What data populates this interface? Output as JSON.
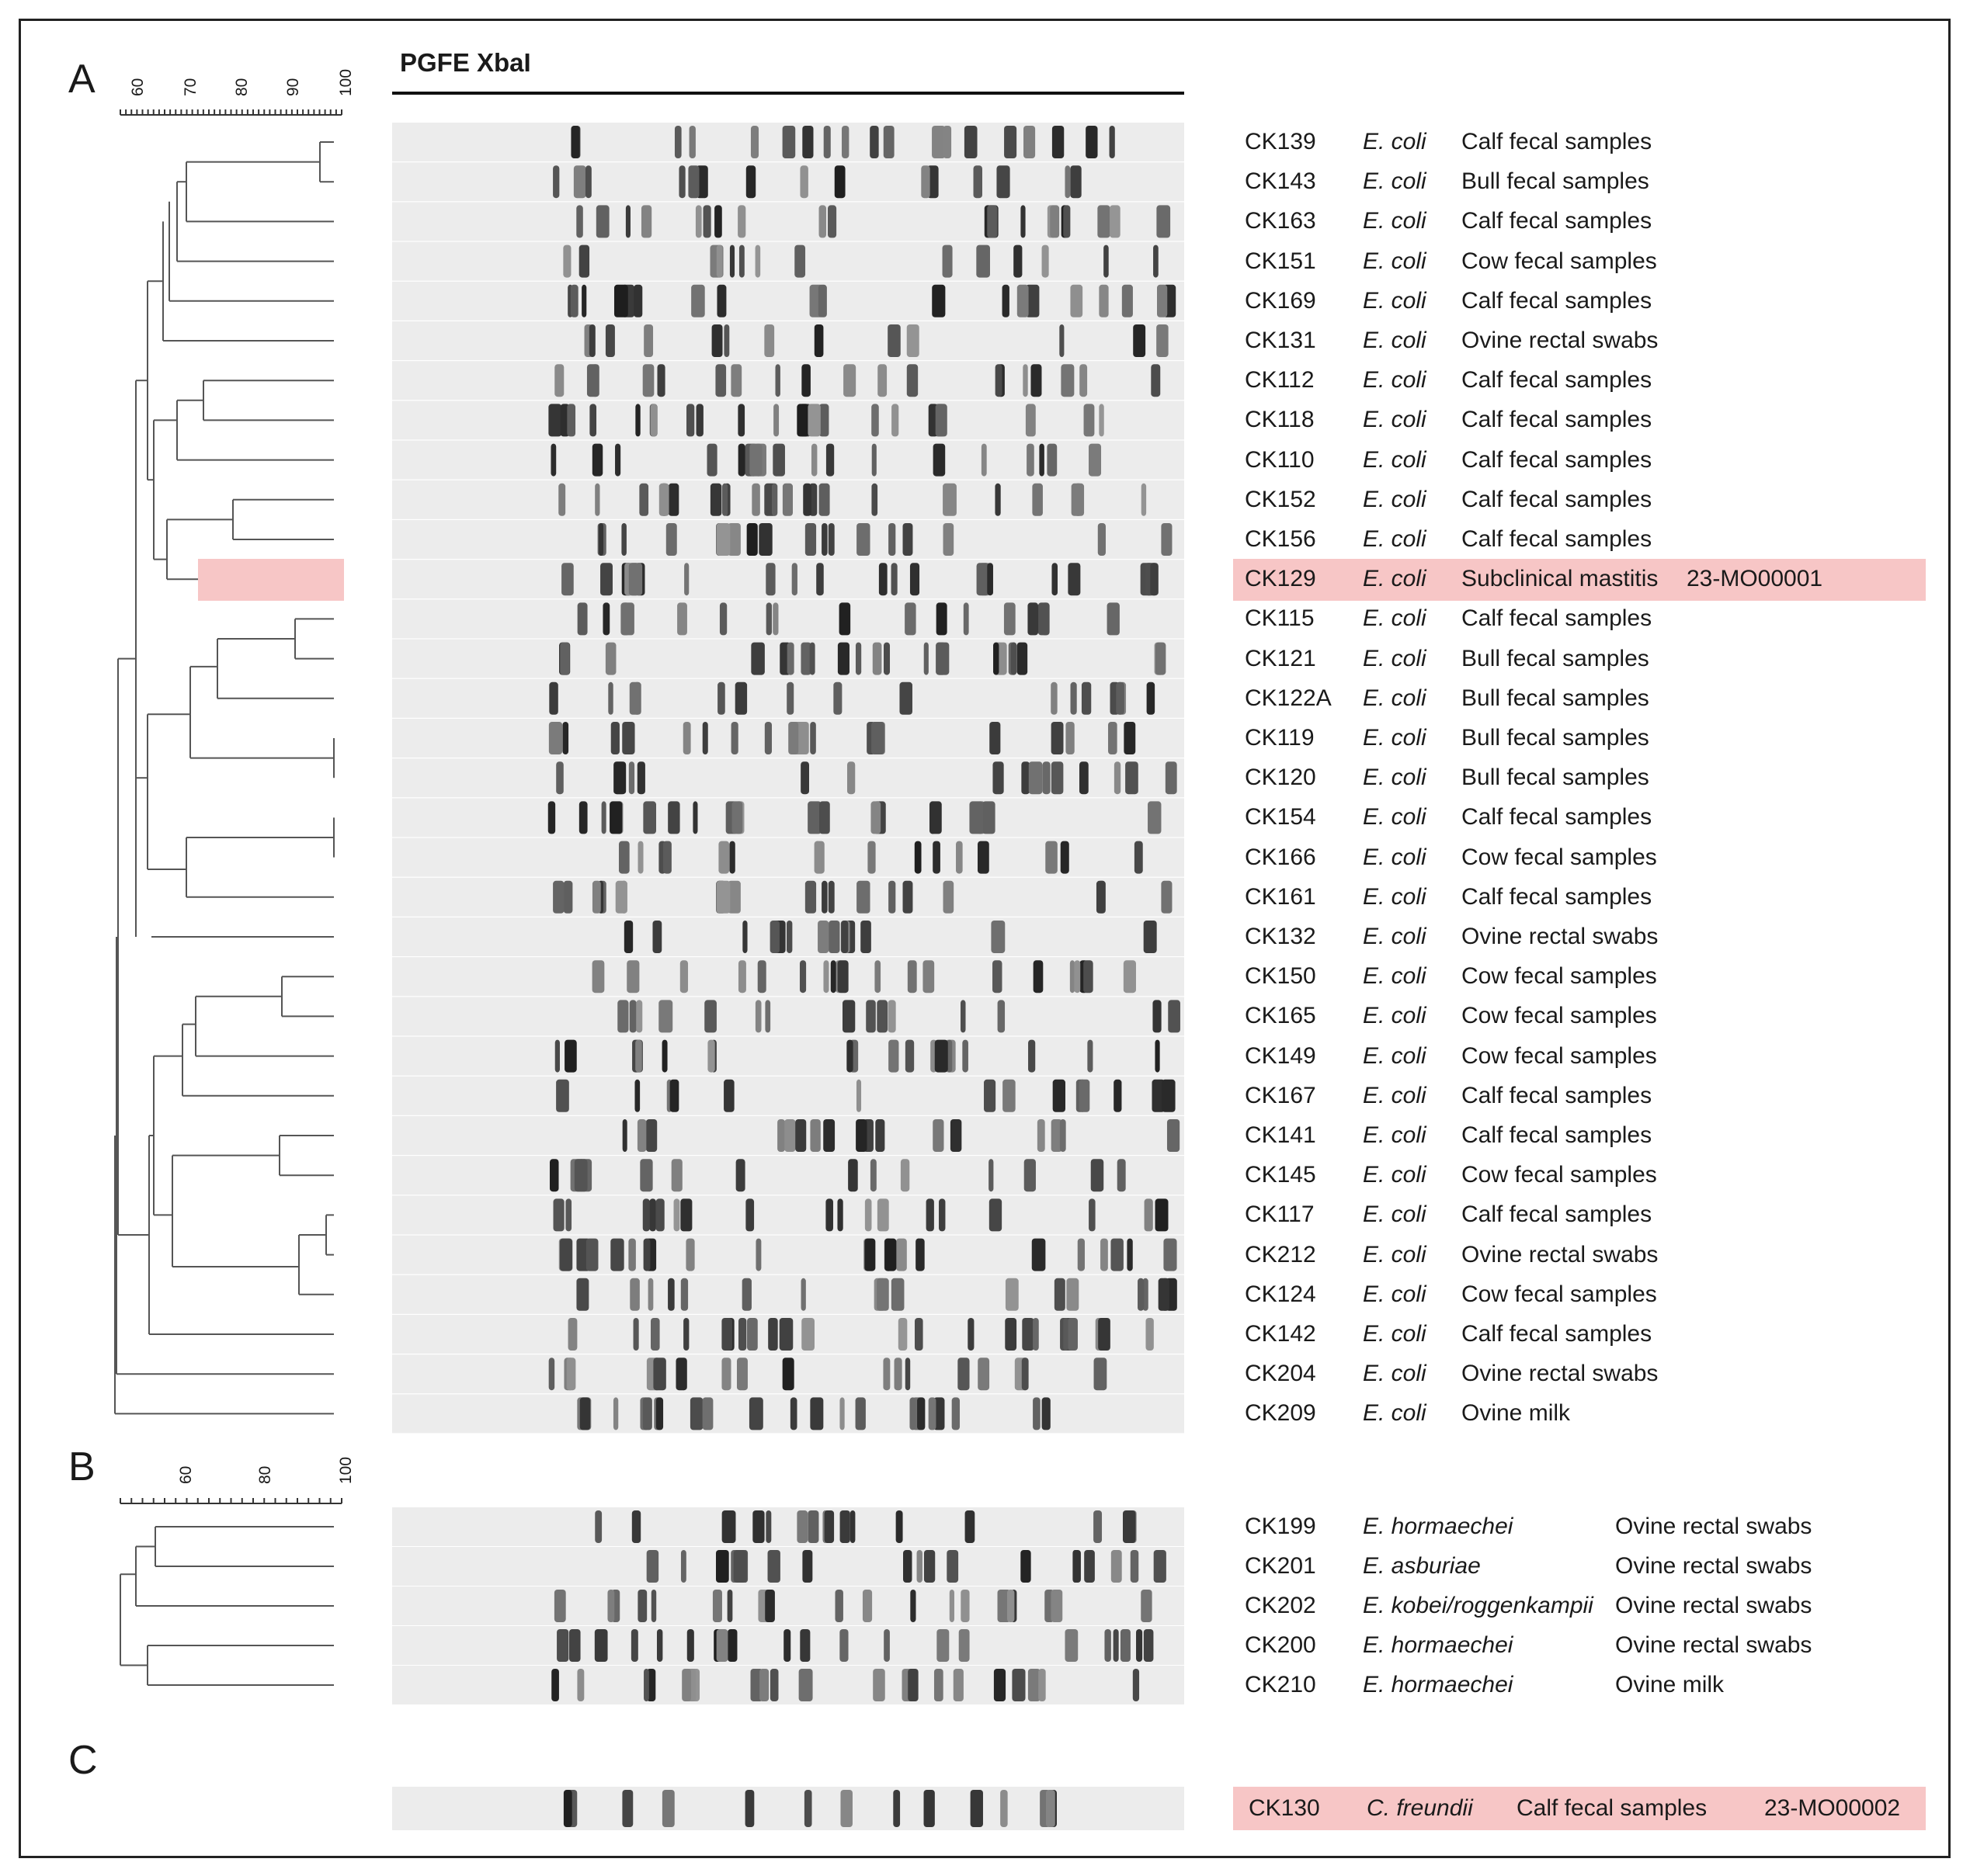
{
  "title": "PGFE XbaI",
  "panels": {
    "A": "A",
    "B": "B",
    "C": "C"
  },
  "scale_a": {
    "ticks": [
      "60",
      "70",
      "80",
      "90",
      "100"
    ]
  },
  "scale_b": {
    "ticks": [
      "60",
      "80",
      "100"
    ]
  },
  "highlight_color": "#f7c6c6",
  "highlighted_isolates": [
    "CK129",
    "CK130"
  ],
  "panel_a_rows": [
    {
      "id": "CK139",
      "species": "E. coli",
      "source": "Calf fecal samples",
      "extra": ""
    },
    {
      "id": "CK143",
      "species": "E. coli",
      "source": "Bull fecal samples",
      "extra": ""
    },
    {
      "id": "CK163",
      "species": "E. coli",
      "source": "Calf fecal samples",
      "extra": ""
    },
    {
      "id": "CK151",
      "species": "E. coli",
      "source": "Cow fecal samples",
      "extra": ""
    },
    {
      "id": "CK169",
      "species": "E. coli",
      "source": "Calf fecal samples",
      "extra": ""
    },
    {
      "id": "CK131",
      "species": "E. coli",
      "source": "Ovine rectal swabs",
      "extra": ""
    },
    {
      "id": "CK112",
      "species": "E. coli",
      "source": "Calf fecal samples",
      "extra": ""
    },
    {
      "id": "CK118",
      "species": "E. coli",
      "source": "Calf fecal samples",
      "extra": ""
    },
    {
      "id": "CK110",
      "species": "E. coli",
      "source": "Calf fecal samples",
      "extra": ""
    },
    {
      "id": "CK152",
      "species": "E. coli",
      "source": "Calf fecal samples",
      "extra": ""
    },
    {
      "id": "CK156",
      "species": "E. coli",
      "source": "Calf fecal samples",
      "extra": ""
    },
    {
      "id": "CK129",
      "species": "E. coli",
      "source": "Subclinical mastitis",
      "extra": "23-MO00001"
    },
    {
      "id": "CK115",
      "species": "E. coli",
      "source": "Calf fecal samples",
      "extra": ""
    },
    {
      "id": "CK121",
      "species": "E. coli",
      "source": "Bull fecal samples",
      "extra": ""
    },
    {
      "id": "CK122A",
      "species": "E. coli",
      "source": "Bull fecal samples",
      "extra": ""
    },
    {
      "id": "CK119",
      "species": "E. coli",
      "source": "Bull fecal samples",
      "extra": ""
    },
    {
      "id": "CK120",
      "species": "E. coli",
      "source": "Bull fecal samples",
      "extra": ""
    },
    {
      "id": "CK154",
      "species": "E. coli",
      "source": "Calf fecal samples",
      "extra": ""
    },
    {
      "id": "CK166",
      "species": "E. coli",
      "source": "Cow fecal samples",
      "extra": ""
    },
    {
      "id": "CK161",
      "species": "E. coli",
      "source": "Calf fecal samples",
      "extra": ""
    },
    {
      "id": "CK132",
      "species": "E. coli",
      "source": "Ovine rectal swabs",
      "extra": ""
    },
    {
      "id": "CK150",
      "species": "E. coli",
      "source": "Cow fecal samples",
      "extra": ""
    },
    {
      "id": "CK165",
      "species": "E. coli",
      "source": "Cow fecal samples",
      "extra": ""
    },
    {
      "id": "CK149",
      "species": "E. coli",
      "source": "Cow fecal samples",
      "extra": ""
    },
    {
      "id": "CK167",
      "species": "E. coli",
      "source": "Calf fecal samples",
      "extra": ""
    },
    {
      "id": "CK141",
      "species": "E. coli",
      "source": "Calf fecal samples",
      "extra": ""
    },
    {
      "id": "CK145",
      "species": "E. coli",
      "source": "Cow fecal samples",
      "extra": ""
    },
    {
      "id": "CK117",
      "species": "E. coli",
      "source": "Calf fecal samples",
      "extra": ""
    },
    {
      "id": "CK212",
      "species": "E. coli",
      "source": "Ovine rectal swabs",
      "extra": ""
    },
    {
      "id": "CK124",
      "species": "E. coli",
      "source": "Cow fecal samples",
      "extra": ""
    },
    {
      "id": "CK142",
      "species": "E. coli",
      "source": "Calf fecal samples",
      "extra": ""
    },
    {
      "id": "CK204",
      "species": "E. coli",
      "source": "Ovine rectal swabs",
      "extra": ""
    },
    {
      "id": "CK209",
      "species": "E. coli",
      "source": "Ovine milk",
      "extra": ""
    }
  ],
  "panel_b_rows": [
    {
      "id": "CK199",
      "species": "E. hormaechei",
      "source": "Ovine rectal swabs"
    },
    {
      "id": "CK201",
      "species": "E. asburiae",
      "source": "Ovine rectal swabs"
    },
    {
      "id": "CK202",
      "species": "E. kobei/roggenkampii",
      "source": "Ovine rectal swabs"
    },
    {
      "id": "CK200",
      "species": "E. hormaechei",
      "source": "Ovine rectal swabs"
    },
    {
      "id": "CK210",
      "species": "E. hormaechei",
      "source": "Ovine milk"
    }
  ],
  "panel_c_rows": [
    {
      "id": "CK130",
      "species": "C. freundii",
      "source": "Calf fecal samples",
      "extra": "23-MO00002"
    }
  ]
}
